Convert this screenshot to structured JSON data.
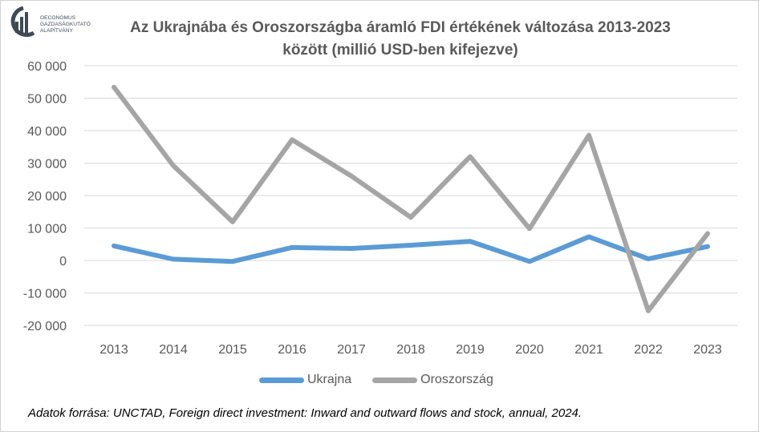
{
  "logo": {
    "lines": [
      "OECONOMUS",
      "GAZDASÁGKUTATÓ",
      "ALAPÍTVÁNY"
    ],
    "icon": "oeconomus-logo-icon"
  },
  "colors": {
    "ukrajna": "#5b9bd5",
    "oroszorszag": "#a5a5a5",
    "grid": "#d9d9d9",
    "text": "#595959"
  },
  "chart_data": {
    "type": "line",
    "title": "Az Ukrajnába és Oroszországba áramló FDI értékének változása 2013-2023 között (millió USD-ben kifejezve)",
    "title_lines": [
      "Az Ukrajnába és Oroszországba áramló FDI értékének változása 2013-2023",
      "között (millió USD-ben kifejezve)"
    ],
    "categories": [
      "2013",
      "2014",
      "2015",
      "2016",
      "2017",
      "2018",
      "2019",
      "2020",
      "2021",
      "2022",
      "2023"
    ],
    "series": [
      {
        "name": "Ukrajna",
        "values": [
          4500,
          400,
          -300,
          4000,
          3700,
          4700,
          5900,
          -300,
          7300,
          500,
          4300
        ]
      },
      {
        "name": "Oroszország",
        "values": [
          53400,
          29200,
          11900,
          37200,
          26000,
          13300,
          32000,
          9800,
          38600,
          -15500,
          8300
        ]
      }
    ],
    "ylim": [
      -20000,
      60000
    ],
    "yticks": [
      -20000,
      -10000,
      0,
      10000,
      20000,
      30000,
      40000,
      50000,
      60000
    ],
    "ytick_labels": [
      "-20 000",
      "-10 000",
      "0",
      "10 000",
      "20 000",
      "30 000",
      "40 000",
      "50 000",
      "60 000"
    ],
    "grid": true,
    "legend": "bottom"
  },
  "source": "Adatok forrása: UNCTAD, Foreign direct investment: Inward and outward flows and stock, annual, 2024."
}
